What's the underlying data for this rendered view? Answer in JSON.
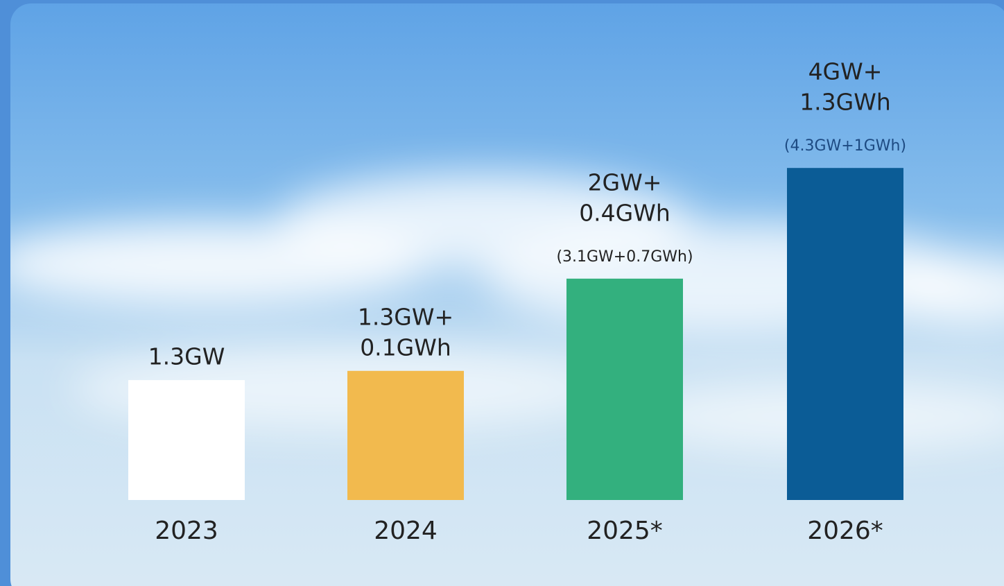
{
  "chart_data": {
    "type": "bar",
    "categories": [
      "2023",
      "2024",
      "2025*",
      "2026*"
    ],
    "values": [
      1.3,
      1.4,
      2.4,
      3.6
    ],
    "colors": [
      "#ffffff",
      "#f2ba4e",
      "#33b07e",
      "#0b5c96"
    ],
    "ylim": [
      0,
      5
    ],
    "annotations": [
      {
        "lines": [
          "1.3GW"
        ]
      },
      {
        "lines": [
          "1.3GW+",
          "0.1GWh"
        ]
      },
      {
        "lines": [
          "2GW+",
          "0.4GWh"
        ],
        "note": "(3.1GW+0.7GWh)"
      },
      {
        "lines": [
          "4GW+",
          "1.3GWh"
        ],
        "note": "(4.3GW+1GWh)"
      }
    ]
  }
}
